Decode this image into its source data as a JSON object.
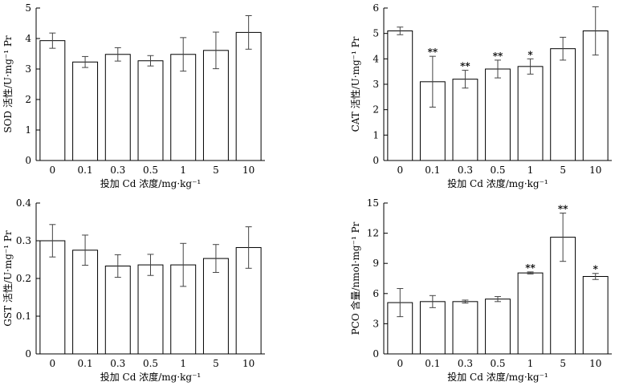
{
  "chart_data": [
    {
      "type": "bar",
      "categories": [
        "0",
        "0.1",
        "0.3",
        "0.5",
        "1",
        "5",
        "10"
      ],
      "values": [
        3.93,
        3.23,
        3.48,
        3.27,
        3.48,
        3.61,
        4.2
      ],
      "errors": [
        0.25,
        0.18,
        0.22,
        0.17,
        0.55,
        0.6,
        0.55
      ],
      "significance": [
        "",
        "",
        "",
        "",
        "",
        "",
        ""
      ],
      "xlabel": "投加 Cd 浓度/mg·kg⁻¹",
      "ylabel": "SOD 活性/U·mg⁻¹ Pr",
      "ylim": [
        0,
        5
      ],
      "yticks": [
        "0",
        "1",
        "2",
        "3",
        "4",
        "5"
      ],
      "grid": false
    },
    {
      "type": "bar",
      "categories": [
        "0",
        "0.1",
        "0.3",
        "0.5",
        "1",
        "5",
        "10"
      ],
      "values": [
        5.1,
        3.1,
        3.2,
        3.6,
        3.7,
        4.4,
        5.1
      ],
      "errors": [
        0.15,
        1.0,
        0.35,
        0.35,
        0.3,
        0.45,
        0.95
      ],
      "significance": [
        "",
        "**",
        "**",
        "**",
        "*",
        "",
        ""
      ],
      "xlabel": "投加 Cd 浓度/mg·kg⁻¹",
      "ylabel": "CAT 活性/U·mg⁻¹ Pr",
      "ylim": [
        0,
        6
      ],
      "yticks": [
        "0",
        "1",
        "2",
        "3",
        "4",
        "5",
        "6"
      ],
      "grid": false
    },
    {
      "type": "bar",
      "categories": [
        "0",
        "0.1",
        "0.3",
        "0.5",
        "1",
        "5",
        "10"
      ],
      "values": [
        0.3,
        0.275,
        0.233,
        0.236,
        0.236,
        0.253,
        0.282
      ],
      "errors": [
        0.043,
        0.04,
        0.03,
        0.028,
        0.057,
        0.037,
        0.055
      ],
      "significance": [
        "",
        "",
        "",
        "",
        "",
        "",
        ""
      ],
      "xlabel": "投加 Cd 浓度/mg·kg⁻¹",
      "ylabel": "GST 活性/U·mg⁻¹ Pr",
      "ylim": [
        0,
        0.4
      ],
      "yticks": [
        "0",
        "0.1",
        "0.2",
        "0.3",
        "0.4"
      ],
      "grid": false
    },
    {
      "type": "bar",
      "categories": [
        "0",
        "0.1",
        "0.3",
        "0.5",
        "1",
        "5",
        "10"
      ],
      "values": [
        5.1,
        5.2,
        5.2,
        5.45,
        8.05,
        11.6,
        7.7
      ],
      "errors": [
        1.4,
        0.6,
        0.15,
        0.25,
        0.1,
        2.4,
        0.3
      ],
      "significance": [
        "",
        "",
        "",
        "",
        "**",
        "**",
        "*"
      ],
      "xlabel": "投加 Cd 浓度/mg·kg⁻¹",
      "ylabel": "PCO 含量/nmol·mg⁻¹ Pr",
      "ylim": [
        0,
        15
      ],
      "yticks": [
        "0",
        "3",
        "6",
        "9",
        "12",
        "15"
      ],
      "grid": false
    }
  ]
}
